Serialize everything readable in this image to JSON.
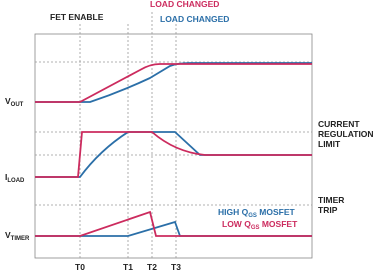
{
  "top_labels": {
    "fet_enable": "FET ENABLE",
    "load_changed_low": "LOAD CHANGED",
    "load_changed_high": "LOAD CHANGED"
  },
  "signals": [
    {
      "base": "V",
      "sub": "OUT"
    },
    {
      "base": "I",
      "sub": "LOAD"
    },
    {
      "base": "V",
      "sub": "TIMER"
    }
  ],
  "right_labels": {
    "current_limit": [
      "CURRENT",
      "REGULATION",
      "LIMIT"
    ],
    "timer_trip": [
      "TIMER",
      "TRIP"
    ]
  },
  "legend": [
    {
      "pre": "HIGH Q",
      "sub": "GS",
      "post": " MOSFET"
    },
    {
      "pre": "LOW Q",
      "sub": "GS",
      "post": " MOSFET"
    }
  ],
  "times": [
    "T0",
    "T1",
    "T2",
    "T3"
  ]
}
